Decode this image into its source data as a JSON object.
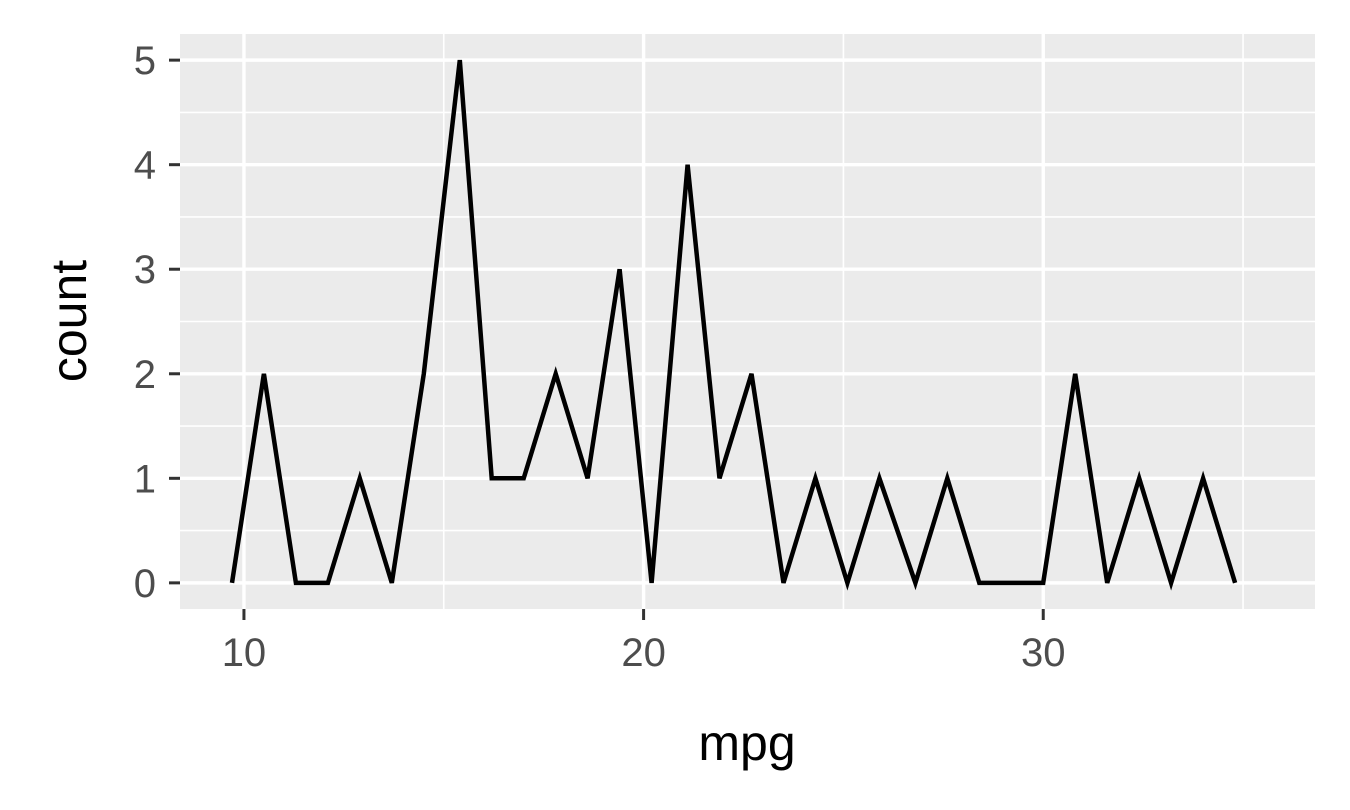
{
  "chart_data": {
    "type": "line",
    "title": "",
    "xlabel": "mpg",
    "ylabel": "count",
    "xlim": [
      8.4,
      36.8
    ],
    "ylim": [
      -0.25,
      5.25
    ],
    "x_ticks": [
      10,
      20,
      30
    ],
    "y_ticks": [
      0,
      1,
      2,
      3,
      4,
      5
    ],
    "grid": true,
    "legend": "none",
    "colors": {
      "panel_background": "#ebebeb",
      "grid": "#ffffff",
      "line": "#000000",
      "tick_text": "#4d4d4d",
      "title_text": "#000000"
    },
    "series": [
      {
        "x": [
          9.7,
          10.5,
          11.3,
          12.1,
          12.9,
          13.7,
          14.5,
          15.4,
          16.2,
          17.0,
          17.8,
          18.6,
          19.4,
          20.2,
          21.1,
          21.9,
          22.7,
          23.5,
          24.3,
          25.1,
          25.9,
          26.8,
          27.6,
          28.4,
          29.2,
          30.0,
          30.8,
          31.6,
          32.4,
          33.2,
          34.0,
          34.8
        ],
        "values": [
          0,
          2,
          0,
          0,
          1,
          0,
          2,
          5,
          1,
          1,
          2,
          1,
          3,
          0,
          4,
          1,
          2,
          0,
          1,
          0,
          1,
          0,
          1,
          0,
          0,
          0,
          2,
          0,
          1,
          0,
          1,
          0
        ]
      }
    ]
  }
}
